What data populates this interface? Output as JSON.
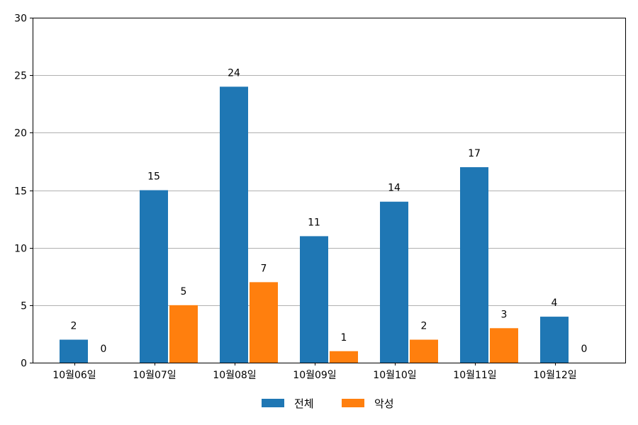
{
  "chart_data": {
    "type": "bar",
    "categories": [
      "10월06일",
      "10월07일",
      "10월08일",
      "10월09일",
      "10월10일",
      "10월11일",
      "10월12일"
    ],
    "series": [
      {
        "name": "전체",
        "values": [
          2,
          15,
          24,
          11,
          14,
          17,
          4
        ],
        "color": "#1f77b4"
      },
      {
        "name": "악성",
        "values": [
          0,
          5,
          7,
          1,
          2,
          3,
          0
        ],
        "color": "#ff7f0e"
      }
    ],
    "ylim": [
      0,
      30
    ],
    "yticks": [
      0,
      5,
      10,
      15,
      20,
      25,
      30
    ],
    "grid": "horizontal",
    "data_labels": true,
    "legend_placement": "bottom-center"
  }
}
